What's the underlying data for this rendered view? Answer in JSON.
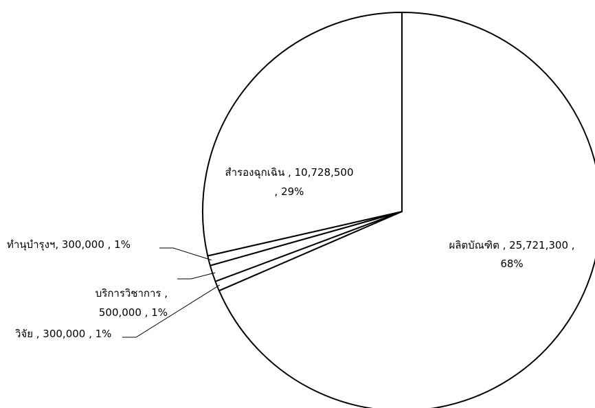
{
  "chart_data": {
    "type": "pie",
    "title": "",
    "slices": [
      {
        "name": "ผลิตบัณฑิต",
        "value": 25721300,
        "percent": 68,
        "label_lines": [
          "ผลิตบัณฑิต ,  25,721,300 ,",
          "68%"
        ]
      },
      {
        "name": "วิจัย",
        "value": 300000,
        "percent": 1,
        "label_lines": [
          "วิจัย ,  300,000 , 1%"
        ]
      },
      {
        "name": "บริการวิชาการ",
        "value": 500000,
        "percent": 1,
        "label_lines": [
          "บริการวิชาการ ,",
          "500,000 , 1%"
        ]
      },
      {
        "name": "ทำนุบำรุงฯ",
        "value": 300000,
        "percent": 1,
        "label_lines": [
          "ทำนุบำรุงฯ,  300,000 , 1%"
        ]
      },
      {
        "name": "สำรองฉุกเฉิน",
        "value": 10728500,
        "percent": 29,
        "label_lines": [
          "สำรองฉุกเฉิน ,  10,728,500",
          ", 29%"
        ]
      }
    ],
    "start": "12 o'clock",
    "direction": "clockwise",
    "slice_fill": "#ffffff",
    "slice_stroke": "#000000",
    "legend": "none"
  }
}
